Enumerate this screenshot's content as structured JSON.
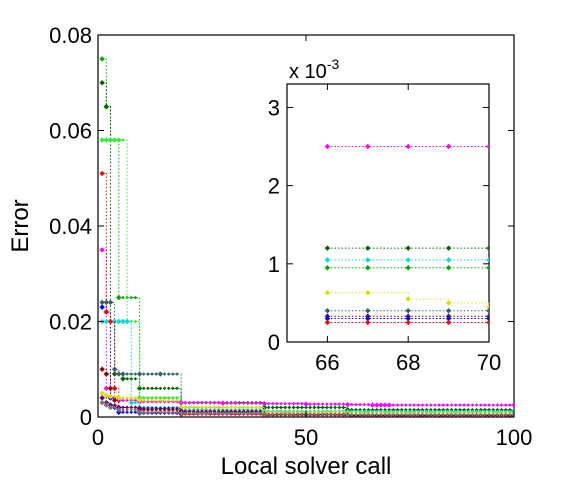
{
  "chart_data": [
    {
      "type": "line",
      "xlabel": "Local solver call",
      "ylabel": "Error",
      "xlim": [
        0,
        100
      ],
      "ylim": [
        0,
        0.08
      ],
      "xticks": [
        0,
        50,
        100
      ],
      "yticks": [
        0,
        0.02,
        0.04,
        0.06,
        0.08
      ],
      "ytick_labels": [
        "0",
        "0.02",
        "0.04",
        "0.06",
        "0.08"
      ],
      "grid": false,
      "series": [
        {
          "color": "#00aa00",
          "x": [
            1,
            2,
            3,
            5,
            10,
            20,
            40,
            60,
            100
          ],
          "y": [
            0.075,
            0.065,
            0.058,
            0.025,
            0.004,
            0.003,
            0.002,
            0.0015,
            0.0012
          ]
        },
        {
          "color": "#006600",
          "x": [
            1,
            2,
            3,
            4,
            6,
            10,
            20,
            40,
            60,
            100
          ],
          "y": [
            0.07,
            0.065,
            0.02,
            0.009,
            0.008,
            0.006,
            0.003,
            0.002,
            0.0015,
            0.0012
          ]
        },
        {
          "color": "#33ee33",
          "x": [
            1,
            2,
            3,
            4,
            5,
            7,
            10,
            20,
            40,
            60,
            100
          ],
          "y": [
            0.058,
            0.058,
            0.058,
            0.058,
            0.058,
            0.02,
            0.004,
            0.002,
            0.0012,
            0.001,
            0.001
          ]
        },
        {
          "color": "#ff00ff",
          "x": [
            1,
            2,
            3,
            5,
            10,
            20,
            30,
            40,
            50,
            60,
            66,
            67,
            68,
            69,
            70,
            100
          ],
          "y": [
            0.035,
            0.006,
            0.004,
            0.0035,
            0.0032,
            0.003,
            0.0029,
            0.0028,
            0.0027,
            0.0026,
            0.0025,
            0.0025,
            0.0025,
            0.0025,
            0.0025,
            0.0025
          ]
        },
        {
          "color": "#00dddd",
          "x": [
            1,
            2,
            3,
            4,
            5,
            6,
            7,
            8,
            10,
            20,
            40,
            60,
            100
          ],
          "y": [
            0.02,
            0.02,
            0.02,
            0.02,
            0.02,
            0.02,
            0.02,
            0.003,
            0.002,
            0.0015,
            0.0012,
            0.0011,
            0.0011
          ]
        },
        {
          "color": "#336666",
          "x": [
            1,
            2,
            3,
            4,
            5,
            6,
            10,
            15,
            20,
            30,
            50,
            60,
            100
          ],
          "y": [
            0.024,
            0.024,
            0.024,
            0.01,
            0.009,
            0.009,
            0.009,
            0.009,
            0.002,
            0.001,
            0.0005,
            0.0004,
            0.0004
          ]
        },
        {
          "color": "#0000ff",
          "x": [
            1,
            2,
            3,
            4,
            5,
            10,
            20,
            40,
            60,
            100
          ],
          "y": [
            0.023,
            0.022,
            0.004,
            0.002,
            0.001,
            0.0008,
            0.0006,
            0.0005,
            0.0004,
            0.0004
          ]
        },
        {
          "color": "#ff0000",
          "x": [
            1,
            2,
            3,
            4,
            5,
            10,
            20,
            40,
            60,
            100
          ],
          "y": [
            0.051,
            0.022,
            0.02,
            0.006,
            0.002,
            0.001,
            0.0006,
            0.0004,
            0.0003,
            0.0003
          ]
        },
        {
          "color": "#990000",
          "x": [
            1,
            2,
            3,
            4,
            5,
            10,
            20,
            40,
            60,
            100
          ],
          "y": [
            0.01,
            0.009,
            0.006,
            0.0035,
            0.002,
            0.0015,
            0.001,
            0.0005,
            0.0003,
            0.0003
          ]
        },
        {
          "color": "#dddd00",
          "x": [
            1,
            2,
            3,
            5,
            10,
            20,
            40,
            60,
            100
          ],
          "y": [
            0.005,
            0.0045,
            0.0043,
            0.004,
            0.0035,
            0.002,
            0.001,
            0.0008,
            0.0006
          ]
        },
        {
          "color": "#660066",
          "x": [
            1,
            2,
            3,
            5,
            10,
            20,
            40,
            60,
            100
          ],
          "y": [
            0.004,
            0.003,
            0.0025,
            0.002,
            0.0018,
            0.0012,
            0.0006,
            0.0004,
            0.0003
          ]
        },
        {
          "color": "#777777",
          "x": [
            1,
            2,
            3,
            5,
            10,
            20,
            40,
            60,
            100
          ],
          "y": [
            0.003,
            0.0025,
            0.002,
            0.0015,
            0.001,
            0.0008,
            0.0006,
            0.0005,
            0.0004
          ]
        }
      ]
    },
    {
      "type": "line",
      "inset": true,
      "xlim": [
        65,
        70
      ],
      "ylim": [
        0,
        3.3
      ],
      "xticks": [
        66,
        68,
        70
      ],
      "yticks": [
        0,
        1,
        2,
        3
      ],
      "y_multiplier": "x 10",
      "y_multiplier_exponent": "-3",
      "grid": false,
      "series": [
        {
          "color": "#ff00ff",
          "x": [
            66,
            67,
            68,
            69,
            70
          ],
          "y": [
            2.5,
            2.5,
            2.5,
            2.5,
            2.5
          ]
        },
        {
          "color": "#006600",
          "x": [
            66,
            67,
            68,
            69,
            70
          ],
          "y": [
            1.2,
            1.2,
            1.2,
            1.2,
            1.2
          ]
        },
        {
          "color": "#00dddd",
          "x": [
            66,
            67,
            68,
            69,
            70
          ],
          "y": [
            1.05,
            1.05,
            1.05,
            1.05,
            1.05
          ]
        },
        {
          "color": "#00aa00",
          "x": [
            66,
            67,
            68,
            69,
            70
          ],
          "y": [
            0.95,
            0.95,
            0.95,
            0.95,
            0.95
          ]
        },
        {
          "color": "#dddd00",
          "x": [
            66,
            67,
            68,
            69,
            70
          ],
          "y": [
            0.63,
            0.63,
            0.55,
            0.5,
            0.45
          ]
        },
        {
          "color": "#336666",
          "x": [
            66,
            67,
            68,
            69,
            70
          ],
          "y": [
            0.4,
            0.4,
            0.4,
            0.4,
            0.4
          ]
        },
        {
          "color": "#660066",
          "x": [
            66,
            67,
            68,
            69,
            70
          ],
          "y": [
            0.33,
            0.33,
            0.33,
            0.33,
            0.33
          ]
        },
        {
          "color": "#0000ff",
          "x": [
            66,
            67,
            68,
            69,
            70
          ],
          "y": [
            0.3,
            0.3,
            0.3,
            0.3,
            0.3
          ]
        },
        {
          "color": "#ff0000",
          "x": [
            66,
            67,
            68,
            69,
            70
          ],
          "y": [
            0.25,
            0.25,
            0.25,
            0.25,
            0.25
          ]
        }
      ]
    }
  ]
}
